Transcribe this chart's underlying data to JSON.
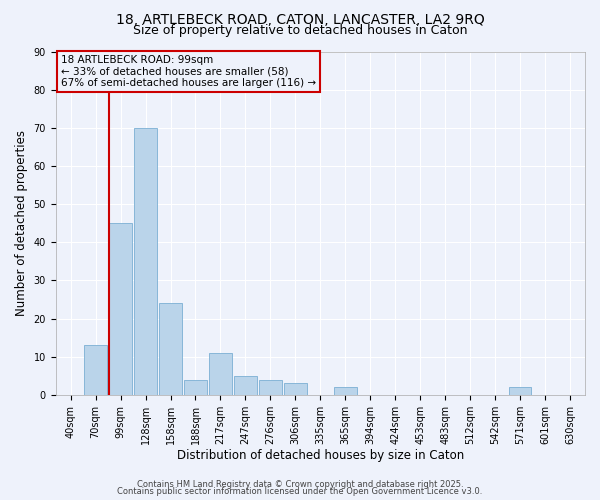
{
  "title_line1": "18, ARTLEBECK ROAD, CATON, LANCASTER, LA2 9RQ",
  "title_line2": "Size of property relative to detached houses in Caton",
  "xlabel": "Distribution of detached houses by size in Caton",
  "ylabel": "Number of detached properties",
  "categories": [
    "40sqm",
    "70sqm",
    "99sqm",
    "128sqm",
    "158sqm",
    "188sqm",
    "217sqm",
    "247sqm",
    "276sqm",
    "306sqm",
    "335sqm",
    "365sqm",
    "394sqm",
    "424sqm",
    "453sqm",
    "483sqm",
    "512sqm",
    "542sqm",
    "571sqm",
    "601sqm",
    "630sqm"
  ],
  "values": [
    0,
    13,
    45,
    70,
    24,
    4,
    11,
    5,
    4,
    3,
    0,
    2,
    0,
    0,
    0,
    0,
    0,
    0,
    2,
    0,
    0
  ],
  "bar_color": "#bad4ea",
  "bar_edge_color": "#7bafd4",
  "vline_x_index": 2,
  "vline_color": "#cc0000",
  "annotation_line1": "18 ARTLEBECK ROAD: 99sqm",
  "annotation_line2": "← 33% of detached houses are smaller (58)",
  "annotation_line3": "67% of semi-detached houses are larger (116) →",
  "annotation_box_color": "#cc0000",
  "ylim": [
    0,
    90
  ],
  "yticks": [
    0,
    10,
    20,
    30,
    40,
    50,
    60,
    70,
    80,
    90
  ],
  "bg_color": "#eef2fb",
  "grid_color": "#ffffff",
  "footer_line1": "Contains HM Land Registry data © Crown copyright and database right 2025.",
  "footer_line2": "Contains public sector information licensed under the Open Government Licence v3.0.",
  "title_fontsize": 10,
  "subtitle_fontsize": 9,
  "axis_label_fontsize": 8.5,
  "tick_fontsize": 7,
  "annotation_fontsize": 7.5,
  "footer_fontsize": 6
}
